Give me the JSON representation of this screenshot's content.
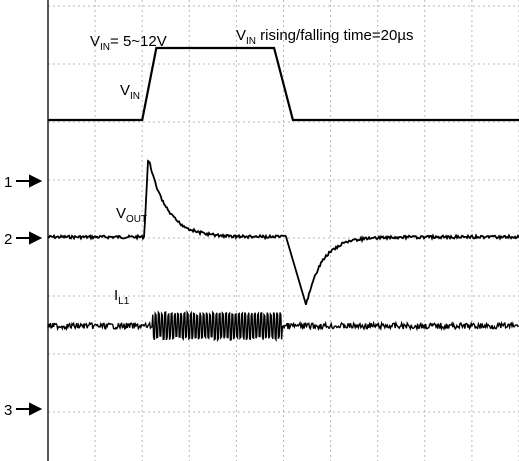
{
  "chart_data": {
    "type": "line",
    "title": "",
    "xlabel": "",
    "ylabel": "",
    "grid": true,
    "grid_divisions": {
      "x": 10,
      "y": 8
    },
    "annotations": {
      "vin_range": {
        "main": "V",
        "sub": "IN",
        "tail": "= 5~12V"
      },
      "rise_fall": {
        "main": "V",
        "sub": "IN",
        "tail": " rising/falling time=20µs"
      }
    },
    "series": [
      {
        "name": {
          "main": "V",
          "sub": "IN"
        },
        "color": "#000000"
      },
      {
        "name": {
          "main": "V",
          "sub": "OUT"
        },
        "color": "#000000"
      },
      {
        "name": {
          "main": "I",
          "sub": "L1"
        },
        "color": "#000000"
      }
    ],
    "channel_markers": [
      "1",
      "2",
      "3"
    ],
    "timeline": {
      "xlim": [
        0,
        10
      ],
      "vin_rise": [
        2.0,
        2.3
      ],
      "vin_fall": [
        4.8,
        5.2
      ],
      "vin_levels": {
        "low": 5,
        "high": 12
      }
    }
  }
}
